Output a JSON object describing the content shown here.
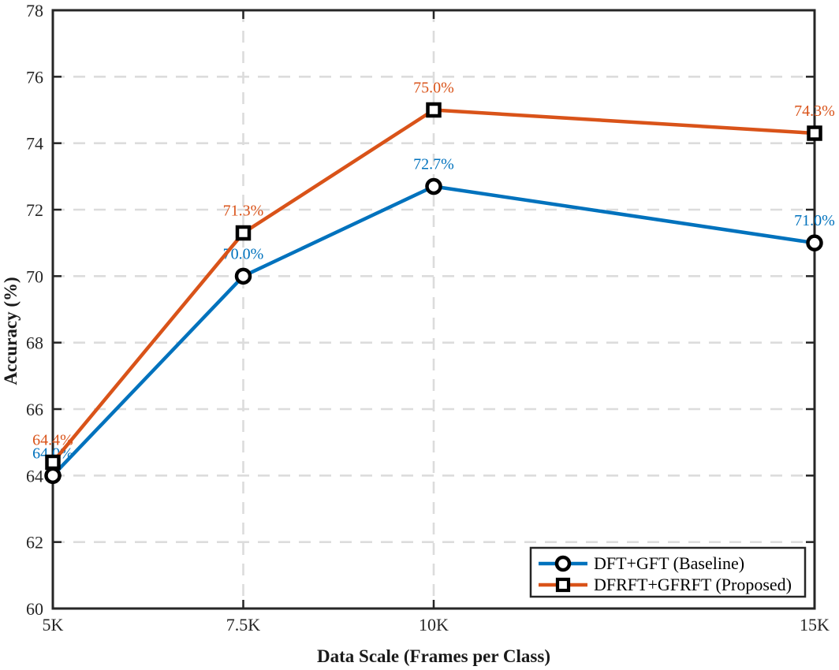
{
  "figure": {
    "background": "#ffffff",
    "axis_color": "#262626",
    "grid_color": "#dcdcdc",
    "tick_label_color": "#262626",
    "legend_text_color": "#000000"
  },
  "chart_data": {
    "type": "line",
    "title": "",
    "xlabel": "Data Scale (Frames per Class)",
    "ylabel": "Accuracy (%)",
    "x": [
      5000,
      7500,
      10000,
      15000
    ],
    "xtick_labels": [
      "5K",
      "7.5K",
      "10K",
      "15K"
    ],
    "xlim": [
      5000,
      15000
    ],
    "yticks": [
      60,
      62,
      64,
      66,
      68,
      70,
      72,
      74,
      76,
      78
    ],
    "ylim": [
      60,
      78
    ],
    "grid": true,
    "grid_style": "dashed",
    "legend_position": "bottom-right",
    "series": [
      {
        "name": "DFT+GFT (Baseline)",
        "values": [
          64.0,
          70.0,
          72.7,
          71.0
        ],
        "point_labels": [
          "64.0%",
          "70.0%",
          "72.7%",
          "71.0%"
        ],
        "color": "#0072BD",
        "marker": "circle",
        "marker_face": "#ffffff",
        "marker_edge": "#000000"
      },
      {
        "name": "DFRFT+GFRFT (Proposed)",
        "values": [
          64.4,
          71.3,
          75.0,
          74.3
        ],
        "point_labels": [
          "64.4%",
          "71.3%",
          "75.0%",
          "74.3%"
        ],
        "color": "#D95319",
        "marker": "square",
        "marker_face": "#ffffff",
        "marker_edge": "#000000"
      }
    ]
  }
}
